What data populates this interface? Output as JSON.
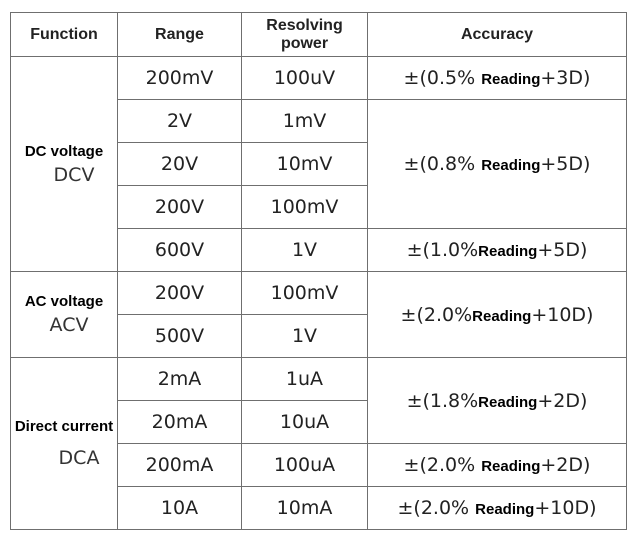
{
  "headers": {
    "function": "Function",
    "range": "Range",
    "resolving_power": "Resolving power",
    "accuracy": "Accuracy"
  },
  "functions": {
    "dc_voltage": {
      "name": "DC voltage",
      "code": "DCV"
    },
    "ac_voltage": {
      "name": "AC voltage",
      "code": "ACV"
    },
    "direct_current": {
      "name": "Direct current",
      "code": "DCA"
    }
  },
  "rows": [
    {
      "range": "200mV",
      "resolution": "100uV"
    },
    {
      "range": "2V",
      "resolution": "1mV"
    },
    {
      "range": "20V",
      "resolution": "10mV"
    },
    {
      "range": "200V",
      "resolution": "100mV"
    },
    {
      "range": "600V",
      "resolution": "1V"
    },
    {
      "range": "200V",
      "resolution": "100mV"
    },
    {
      "range": "500V",
      "resolution": "1V"
    },
    {
      "range": "2mA",
      "resolution": "1uA"
    },
    {
      "range": "20mA",
      "resolution": "10uA"
    },
    {
      "range": "200mA",
      "resolution": "100uA"
    },
    {
      "range": "10A",
      "resolution": "10mA"
    }
  ],
  "accuracy": [
    {
      "prefix": "±(0.5%",
      "reading": "Reading",
      "suffix": "+3D)"
    },
    {
      "prefix": "±(0.8%",
      "reading": "Reading",
      "suffix": "+5D)"
    },
    {
      "prefix": "±(1.0%",
      "reading": "Reading",
      "suffix": "+5D)"
    },
    {
      "prefix": "±(2.0%",
      "reading": "Reading",
      "suffix": "+10D)"
    },
    {
      "prefix": "±(1.8%",
      "reading": "Reading",
      "suffix": "+2D)"
    },
    {
      "prefix": "±(2.0%",
      "reading": "Reading",
      "suffix": "+2D)"
    },
    {
      "prefix": "±(2.0%",
      "reading": "Reading",
      "suffix": "+10D)"
    }
  ]
}
